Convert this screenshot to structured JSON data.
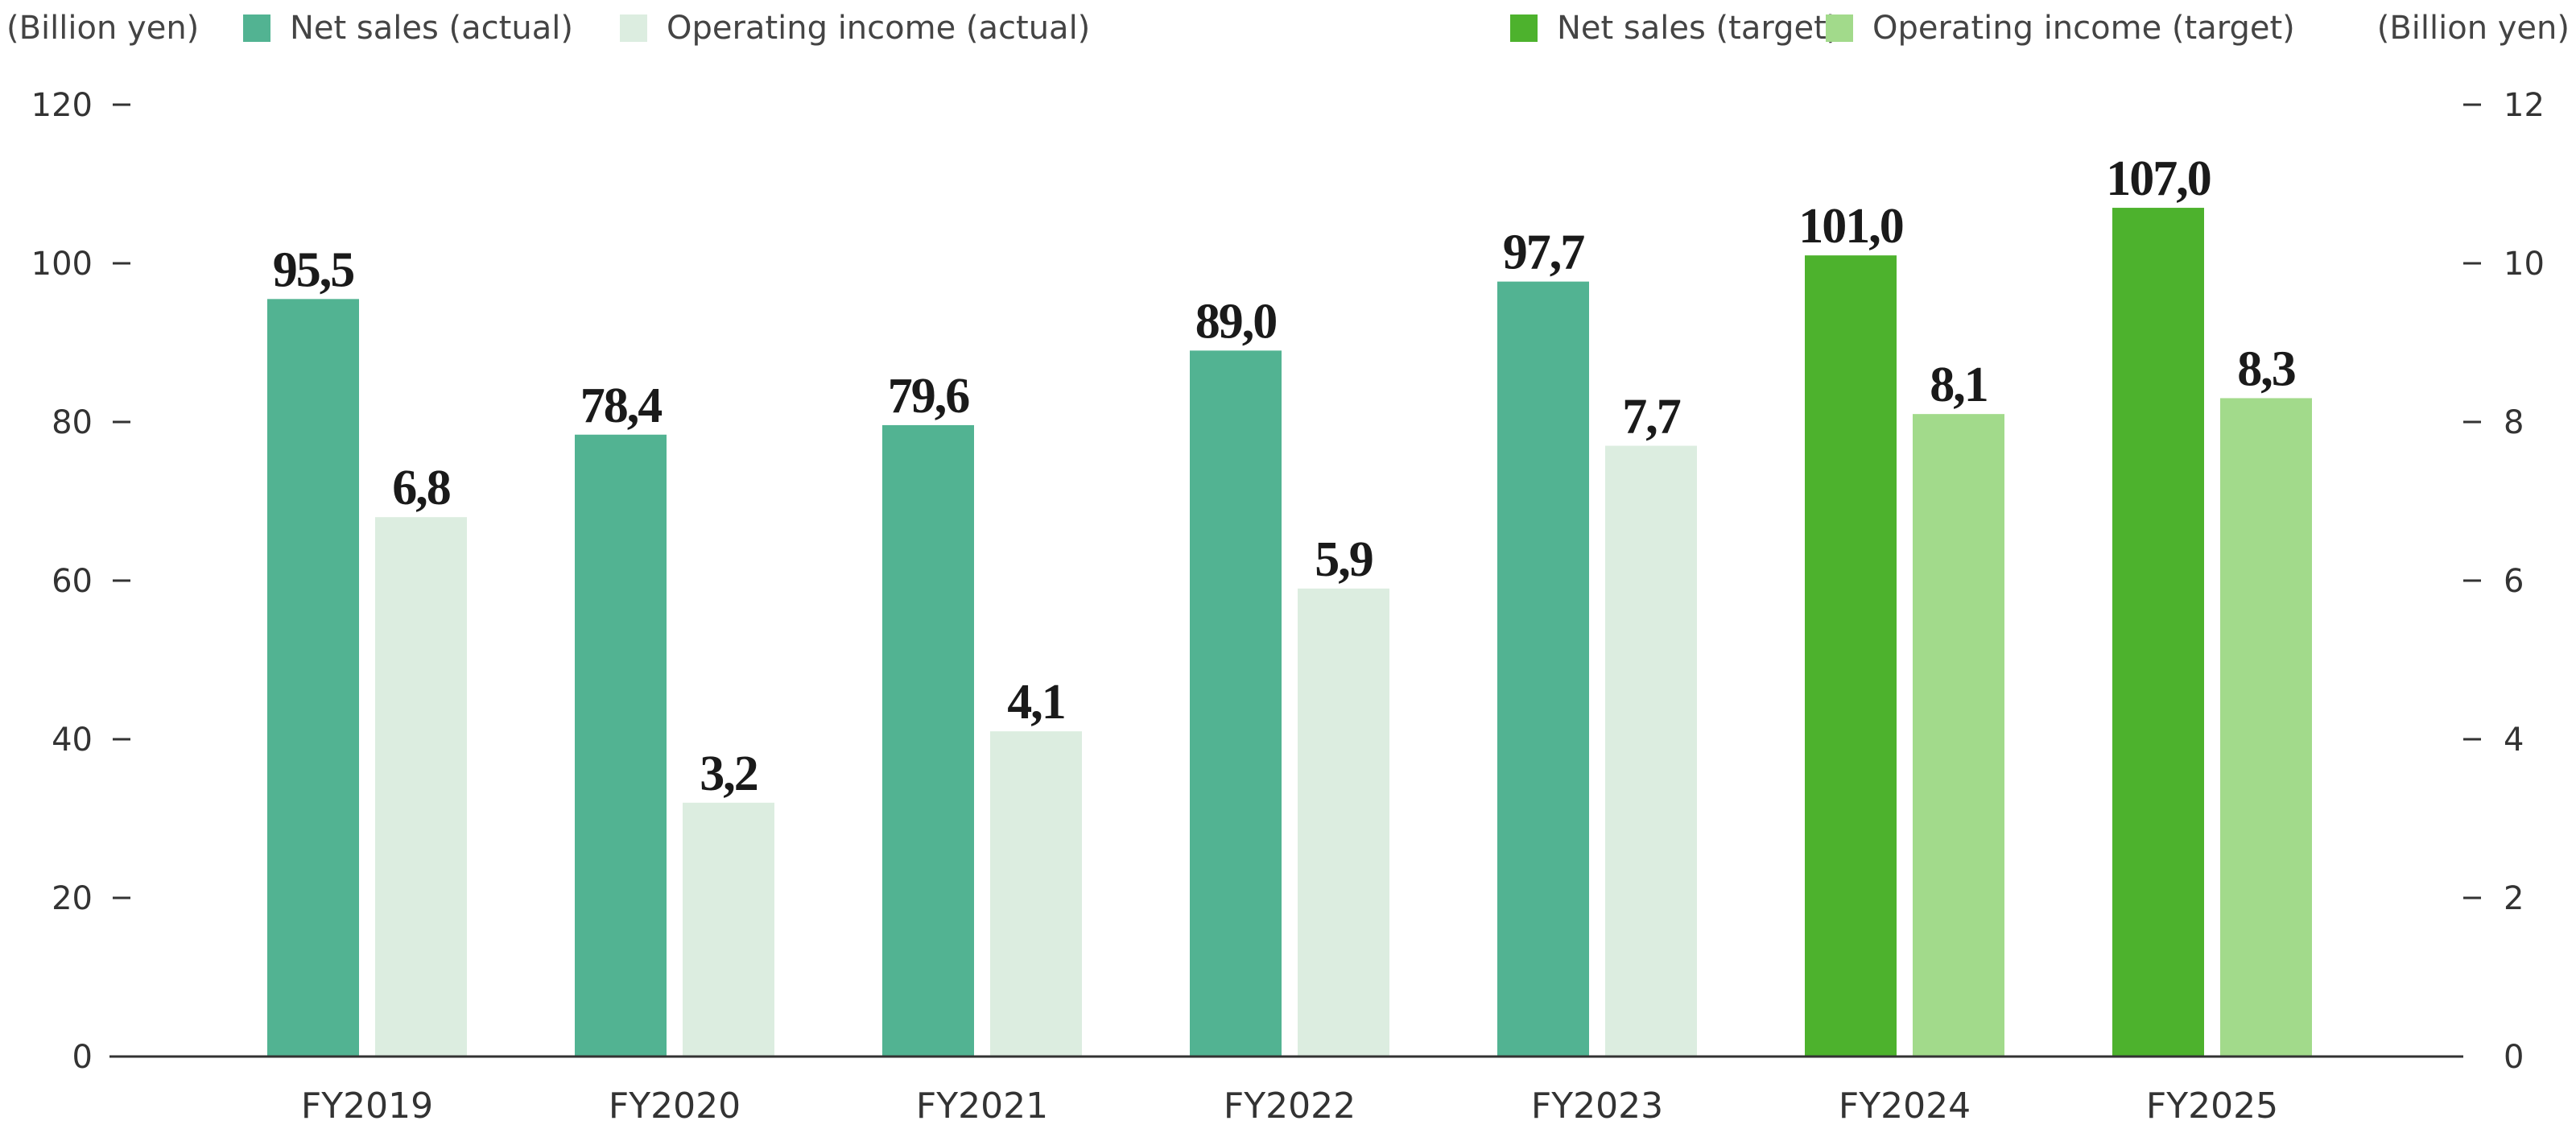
{
  "chart_data": {
    "type": "bar",
    "left_axis_unit": "(Billion yen)",
    "right_axis_unit": "(Billion yen)",
    "categories": [
      "FY2019",
      "FY2020",
      "FY2021",
      "FY2022",
      "FY2023",
      "FY2024",
      "FY2025"
    ],
    "series": [
      {
        "name": "Net sales (actual)",
        "axis": "left",
        "color": "#52b392",
        "values": [
          95.5,
          78.4,
          79.6,
          89.0,
          97.7,
          null,
          null
        ],
        "labels": [
          "95,5",
          "78,4",
          "79,6",
          "89,0",
          "97,7",
          null,
          null
        ]
      },
      {
        "name": "Operating income (actual)",
        "axis": "right",
        "color": "#dcede0",
        "values": [
          6.8,
          3.2,
          4.1,
          5.9,
          7.7,
          null,
          null
        ],
        "labels": [
          "6,8",
          "3,2",
          "4,1",
          "5,9",
          "7,7",
          null,
          null
        ]
      },
      {
        "name": "Net sales (target)",
        "axis": "left",
        "color": "#4db22d",
        "values": [
          null,
          null,
          null,
          null,
          null,
          101.0,
          107.0
        ],
        "labels": [
          null,
          null,
          null,
          null,
          null,
          "101,0",
          "107,0"
        ]
      },
      {
        "name": "Operating income (target)",
        "axis": "right",
        "color": "#a2da8b",
        "values": [
          null,
          null,
          null,
          null,
          null,
          8.1,
          8.3
        ],
        "labels": [
          null,
          null,
          null,
          null,
          null,
          "8,1",
          "8,3"
        ]
      }
    ],
    "y_left": {
      "min": 0,
      "max": 120,
      "ticks": [
        "0",
        "20",
        "40",
        "60",
        "80",
        "100",
        "120"
      ]
    },
    "y_right": {
      "min": 0,
      "max": 12,
      "ticks": [
        "0",
        "2",
        "4",
        "6",
        "8",
        "10",
        "12"
      ]
    },
    "legend_position": "top",
    "grid": false
  }
}
